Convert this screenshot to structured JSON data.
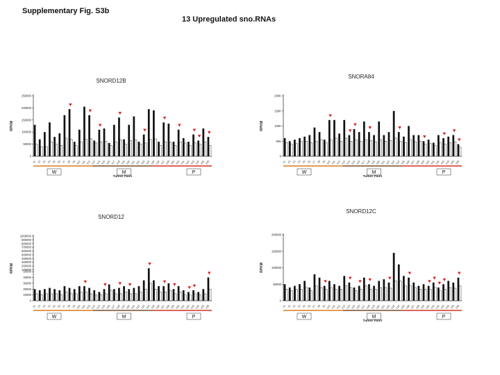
{
  "figure_label": "Supplementary Fig. S3b",
  "main_title": "13  Upregulated sno.RNAs",
  "colors": {
    "group_w": "#d97a1a",
    "group_m": "#7a4a2a",
    "group_p": "#d03020",
    "marker": "#d9211c"
  },
  "chart_data": [
    {
      "type": "bar",
      "title": "SNORD12B",
      "xlabel": "Tumor Pairs",
      "ylabel": "RPKM",
      "yticks": [
        "0",
        "50000",
        "100000",
        "150000",
        "200000",
        "250000"
      ],
      "ylim": [
        0,
        250000
      ],
      "groups": [
        "W",
        "M",
        "P"
      ],
      "categories": [
        "T1",
        "T2",
        "T3",
        "T4",
        "T5",
        "T6",
        "T7",
        "T8",
        "T9",
        "T10",
        "T11",
        "T12",
        "T13",
        "T14",
        "T15",
        "T16",
        "T17",
        "T18",
        "T19",
        "T20",
        "T21",
        "T22",
        "T23",
        "T24",
        "T25",
        "T26",
        "T27",
        "T28",
        "T29",
        "T30",
        "T31",
        "T32",
        "T33",
        "T34",
        "T35",
        "T36"
      ],
      "series": [
        {
          "values": [
            130000,
            70000,
            100000,
            140000,
            80000,
            95000,
            170000,
            195000,
            60000,
            110000,
            205000,
            170000,
            65000,
            110000,
            115000,
            55000,
            130000,
            160000,
            70000,
            130000,
            165000,
            60000,
            90000,
            195000,
            190000,
            60000,
            140000,
            135000,
            60000,
            110000,
            75000,
            60000,
            90000,
            65000,
            115000,
            80000
          ]
        },
        {
          "values": [
            50000,
            40000,
            40000,
            60000,
            50000,
            45000,
            75000,
            70000,
            45000,
            60000,
            70000,
            72000,
            55000,
            60000,
            62000,
            45000,
            60000,
            68000,
            50000,
            65000,
            68000,
            50000,
            55000,
            70000,
            72000,
            45000,
            60000,
            58000,
            45000,
            60000,
            55000,
            45000,
            55000,
            50000,
            60000,
            45000
          ]
        }
      ],
      "markers": [
        8,
        12,
        14,
        18,
        23,
        27,
        30,
        33,
        34,
        36
      ]
    },
    {
      "type": "bar",
      "title": "SNORA84",
      "xlabel": "Tumor Pairs",
      "ylabel": "RPKM",
      "yticks": [
        "0",
        "50K",
        "100K",
        "150K",
        "200K"
      ],
      "ylim": [
        0,
        200
      ],
      "groups": [
        "W",
        "M",
        "P"
      ],
      "categories": [
        "T1",
        "T2",
        "T3",
        "T4",
        "T5",
        "T6",
        "T7",
        "T8",
        "T9",
        "T10",
        "T11",
        "T12",
        "T13",
        "T14",
        "T15",
        "T16",
        "T17",
        "T18",
        "T19",
        "T20",
        "T21",
        "T22",
        "T23",
        "T24",
        "T25",
        "T26",
        "T27",
        "T28",
        "T29",
        "T30",
        "T31",
        "T32",
        "T33",
        "T34",
        "T35",
        "T36"
      ],
      "series": [
        {
          "values": [
            60,
            50,
            55,
            60,
            65,
            70,
            95,
            80,
            55,
            120,
            120,
            75,
            120,
            70,
            90,
            80,
            115,
            80,
            70,
            115,
            70,
            80,
            150,
            80,
            65,
            100,
            70,
            70,
            50,
            55,
            45,
            70,
            60,
            65,
            70,
            40
          ]
        },
        {
          "values": [
            45,
            40,
            42,
            50,
            50,
            45,
            50,
            55,
            45,
            55,
            60,
            50,
            60,
            50,
            55,
            50,
            55,
            52,
            48,
            55,
            50,
            52,
            60,
            50,
            45,
            55,
            48,
            50,
            40,
            42,
            35,
            45,
            40,
            45,
            48,
            30
          ]
        }
      ],
      "markers": [
        10,
        14,
        15,
        18,
        24,
        29,
        33,
        35,
        36
      ]
    },
    {
      "type": "bar",
      "title": "SNORD12",
      "xlabel": "",
      "ylabel": "RPKM",
      "yticks": [
        "0",
        "10000",
        "20000",
        "30000",
        "40000",
        "50000",
        "100000",
        "200000",
        "300000",
        "400000",
        "500000",
        "600000",
        "700000",
        "800000",
        "900000",
        "1000000"
      ],
      "ylim": [
        0,
        1000000
      ],
      "groups": [
        "W",
        "M",
        "P"
      ],
      "categories": [
        "T1",
        "T2",
        "T3",
        "T4",
        "T5",
        "T6",
        "T7",
        "T8",
        "T9",
        "T10",
        "T11",
        "T12",
        "T13",
        "T14",
        "T15",
        "T16",
        "T17",
        "T18",
        "T19",
        "T20",
        "T21",
        "T22",
        "T23",
        "T24",
        "T25",
        "T26",
        "T27",
        "T28",
        "T29",
        "T30",
        "T31",
        "T32",
        "T33",
        "T34",
        "T35",
        "T36"
      ],
      "series": [
        {
          "values": [
            20000,
            18000,
            20000,
            22000,
            20000,
            18000,
            25000,
            22000,
            20000,
            25000,
            25000,
            22000,
            18000,
            15000,
            20000,
            28000,
            20000,
            22000,
            25000,
            20000,
            22000,
            25000,
            35000,
            140000,
            35000,
            25000,
            25000,
            30000,
            20000,
            25000,
            18000,
            15000,
            18000,
            15000,
            20000,
            40000
          ]
        },
        {
          "values": [
            12000,
            10000,
            12000,
            12000,
            12000,
            10000,
            15000,
            12000,
            12000,
            15000,
            15000,
            12000,
            10000,
            10000,
            12000,
            18000,
            12000,
            12000,
            15000,
            12000,
            12000,
            15000,
            20000,
            30000,
            20000,
            15000,
            15000,
            18000,
            12000,
            15000,
            10000,
            10000,
            12000,
            10000,
            12000,
            20000
          ]
        }
      ],
      "markers": [
        11,
        15,
        18,
        20,
        24,
        27,
        29,
        32,
        33,
        36
      ]
    },
    {
      "type": "bar",
      "title": "SNORD12C",
      "xlabel": "Tumor Pairs",
      "ylabel": "RPKM",
      "yticks": [
        "0",
        "50000",
        "100000",
        "150000",
        "200000"
      ],
      "ylim": [
        0,
        200000
      ],
      "groups": [
        "W",
        "M",
        "P"
      ],
      "categories": [
        "T1",
        "T2",
        "T3",
        "T4",
        "T5",
        "T6",
        "T7",
        "T8",
        "T9",
        "T10",
        "T11",
        "T12",
        "T13",
        "T14",
        "T15",
        "T16",
        "T17",
        "T18",
        "T19",
        "T20",
        "T21",
        "T22",
        "T23",
        "T24",
        "T25",
        "T26",
        "T27",
        "T28",
        "T29",
        "T30",
        "T31",
        "T32",
        "T33",
        "T34",
        "T35",
        "T36"
      ],
      "series": [
        {
          "values": [
            50000,
            40000,
            45000,
            50000,
            60000,
            40000,
            80000,
            70000,
            45000,
            60000,
            50000,
            45000,
            75000,
            55000,
            40000,
            45000,
            70000,
            50000,
            45000,
            60000,
            65000,
            55000,
            145000,
            110000,
            75000,
            70000,
            55000,
            45000,
            50000,
            45000,
            55000,
            40000,
            50000,
            60000,
            55000,
            70000
          ]
        },
        {
          "values": [
            35000,
            30000,
            35000,
            35000,
            40000,
            30000,
            45000,
            40000,
            35000,
            40000,
            35000,
            35000,
            45000,
            40000,
            30000,
            35000,
            45000,
            35000,
            35000,
            40000,
            40000,
            38000,
            60000,
            60000,
            45000,
            45000,
            40000,
            35000,
            35000,
            35000,
            40000,
            30000,
            35000,
            40000,
            38000,
            45000
          ]
        }
      ],
      "markers": [
        9,
        14,
        16,
        18,
        22,
        26,
        30,
        31,
        32,
        33,
        36
      ]
    }
  ]
}
